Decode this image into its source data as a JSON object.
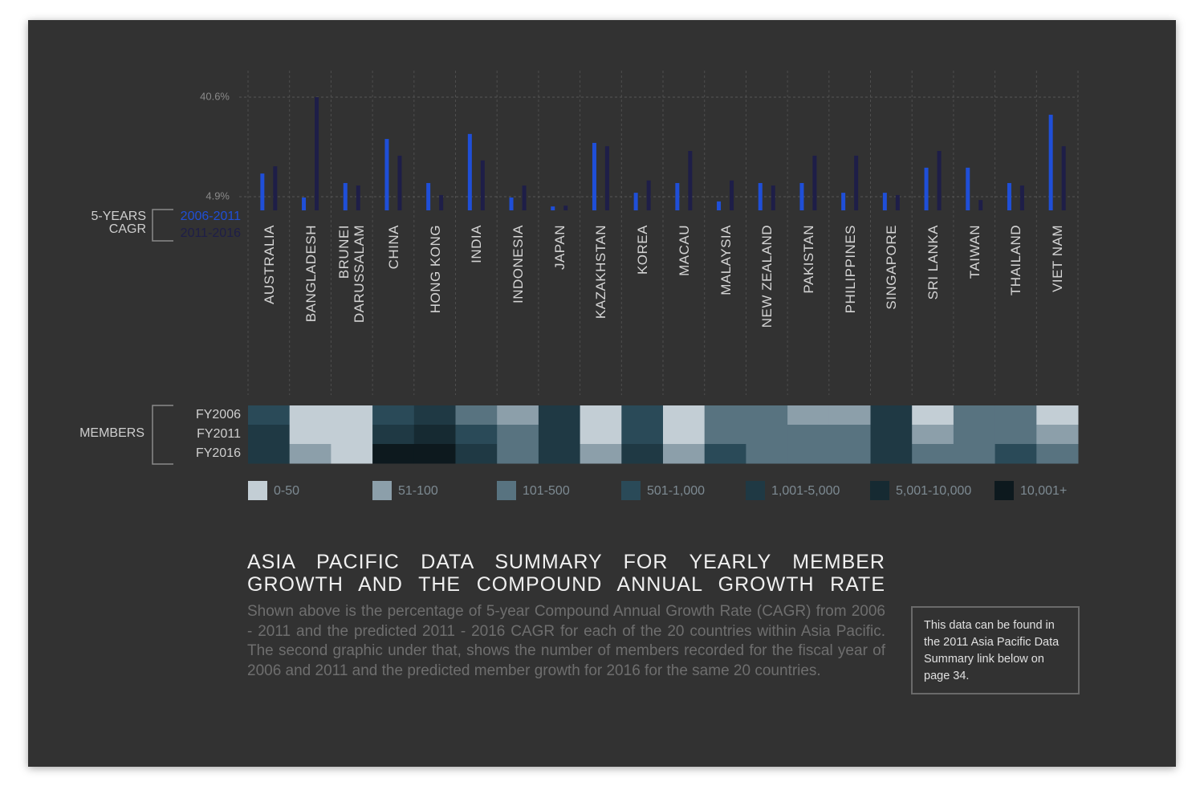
{
  "title": "ASIA PACIFIC DATA SUMMARY FOR YEARLY MEMBER GROWTH AND THE COMPOUND ANNUAL GROWTH RATE",
  "description": "Shown above is the percentage of 5-year Compound Annual Growth Rate (CAGR) from 2006 - 2011 and the predicted 2011 - 2016 CAGR for each of the 20 countries within Asia Pacific. The second graphic under that, shows the number of members recorded for the fiscal year of 2006 and 2011 and the predicted member growth for 2016 for the same 20 countries.",
  "note": "This data can be found in the 2011 Asia Pacific Data Summary link below on page 34.",
  "chart_data": [
    {
      "type": "bar",
      "legend_title": "5-YEARS CAGR",
      "categories": [
        "AUSTRALIA",
        "BANGLADESH",
        "BRUNEI DARUSSALAM",
        "CHINA",
        "HONG KONG",
        "INDIA",
        "INDONESIA",
        "JAPAN",
        "KAZAKHSTAN",
        "KOREA",
        "MACAU",
        "MALAYSIA",
        "NEW ZEALAND",
        "PAKISTAN",
        "PHILIPPINES",
        "SINGAPORE",
        "SRI LANKA",
        "TAIWAN",
        "THAILAND",
        "VIET NAM"
      ],
      "series": [
        {
          "name": "2006-2011",
          "color": "#1f4fd8",
          "values": [
            13.2,
            4.6,
            9.8,
            25.6,
            9.8,
            27.4,
            4.6,
            1.4,
            24.2,
            6.3,
            9.8,
            3.2,
            9.8,
            9.8,
            6.3,
            6.3,
            15.3,
            15.3,
            9.8,
            34.3
          ]
        },
        {
          "name": "2011-2016",
          "color": "#1e1e48",
          "values": [
            15.8,
            40.6,
            8.9,
            19.6,
            5.5,
            17.9,
            8.9,
            1.7,
            23.0,
            10.7,
            21.3,
            10.7,
            8.9,
            19.6,
            19.6,
            5.5,
            21.3,
            3.7,
            8.9,
            23.0
          ]
        }
      ],
      "ylim": [
        0,
        40.6
      ],
      "yticks": [
        {
          "value": 4.9,
          "label": "4.9%"
        },
        {
          "value": 40.6,
          "label": "40.6%"
        }
      ],
      "grid": true
    },
    {
      "type": "heatmap",
      "title": "MEMBERS",
      "rows": [
        "FY2006",
        "FY2011",
        "FY2016"
      ],
      "legend": [
        {
          "label": "0-50",
          "color": "#c3ced5"
        },
        {
          "label": "51-100",
          "color": "#8c9faa"
        },
        {
          "label": "101-500",
          "color": "#587380"
        },
        {
          "label": "501-1,000",
          "color": "#2a4a58"
        },
        {
          "label": "1,001-5,000",
          "color": "#1f3944"
        },
        {
          "label": "5,001-10,000",
          "color": "#162a32"
        },
        {
          "label": "10,001+",
          "color": "#0d191e"
        }
      ],
      "cells": [
        [
          "501-1,000",
          "0-50",
          "0-50",
          "501-1,000",
          "1,001-5,000",
          "101-500",
          "51-100",
          "1,001-5,000",
          "0-50",
          "501-1,000",
          "0-50",
          "101-500",
          "101-500",
          "51-100",
          "51-100",
          "1,001-5,000",
          "0-50",
          "101-500",
          "101-500",
          "0-50"
        ],
        [
          "1,001-5,000",
          "0-50",
          "0-50",
          "1,001-5,000",
          "5,001-10,000",
          "501-1,000",
          "101-500",
          "1,001-5,000",
          "0-50",
          "501-1,000",
          "0-50",
          "101-500",
          "101-500",
          "101-500",
          "101-500",
          "1,001-5,000",
          "51-100",
          "101-500",
          "101-500",
          "51-100"
        ],
        [
          "1,001-5,000",
          "51-100",
          "0-50",
          "10,001+",
          "10,001+",
          "1,001-5,000",
          "101-500",
          "1,001-5,000",
          "51-100",
          "1,001-5,000",
          "51-100",
          "501-1,000",
          "101-500",
          "101-500",
          "101-500",
          "1,001-5,000",
          "101-500",
          "101-500",
          "501-1,000",
          "101-500"
        ]
      ]
    }
  ]
}
